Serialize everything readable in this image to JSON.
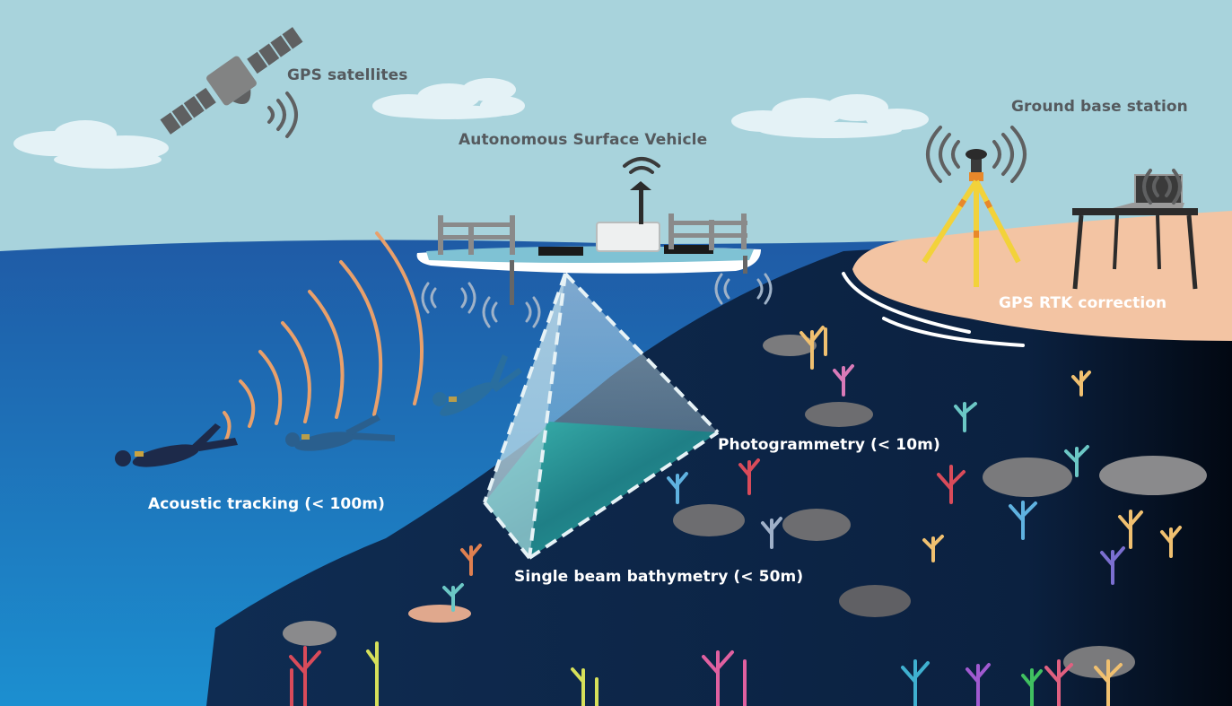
{
  "labels": {
    "gps_satellites": "GPS satellites",
    "asv": "Autonomous Surface Vehicle",
    "ground_base_station": "Ground base station",
    "gps_rtk": "GPS RTK correction",
    "acoustic_tracking": "Acoustic tracking (< 100m)",
    "photogrammetry": "Photogrammetry (< 10m)",
    "bathymetry": "Single beam bathymetry (< 50m)"
  },
  "colors": {
    "sky": "#a8d3dc",
    "ocean_surface": "#1f5ba6",
    "ocean_deep": "#0e3f7a",
    "seabed": "#0b1f3a",
    "sand": "#f3c4a3",
    "signal_orange": "#e9a06b",
    "label_dark": "#555a5e",
    "label_light": "#ffffff"
  },
  "icons": [
    "satellite-icon",
    "cloud-icon",
    "surface-vehicle-icon",
    "diver-icon",
    "gps-tripod-icon",
    "laptop-icon",
    "signal-waves-icon",
    "coral-icon"
  ]
}
